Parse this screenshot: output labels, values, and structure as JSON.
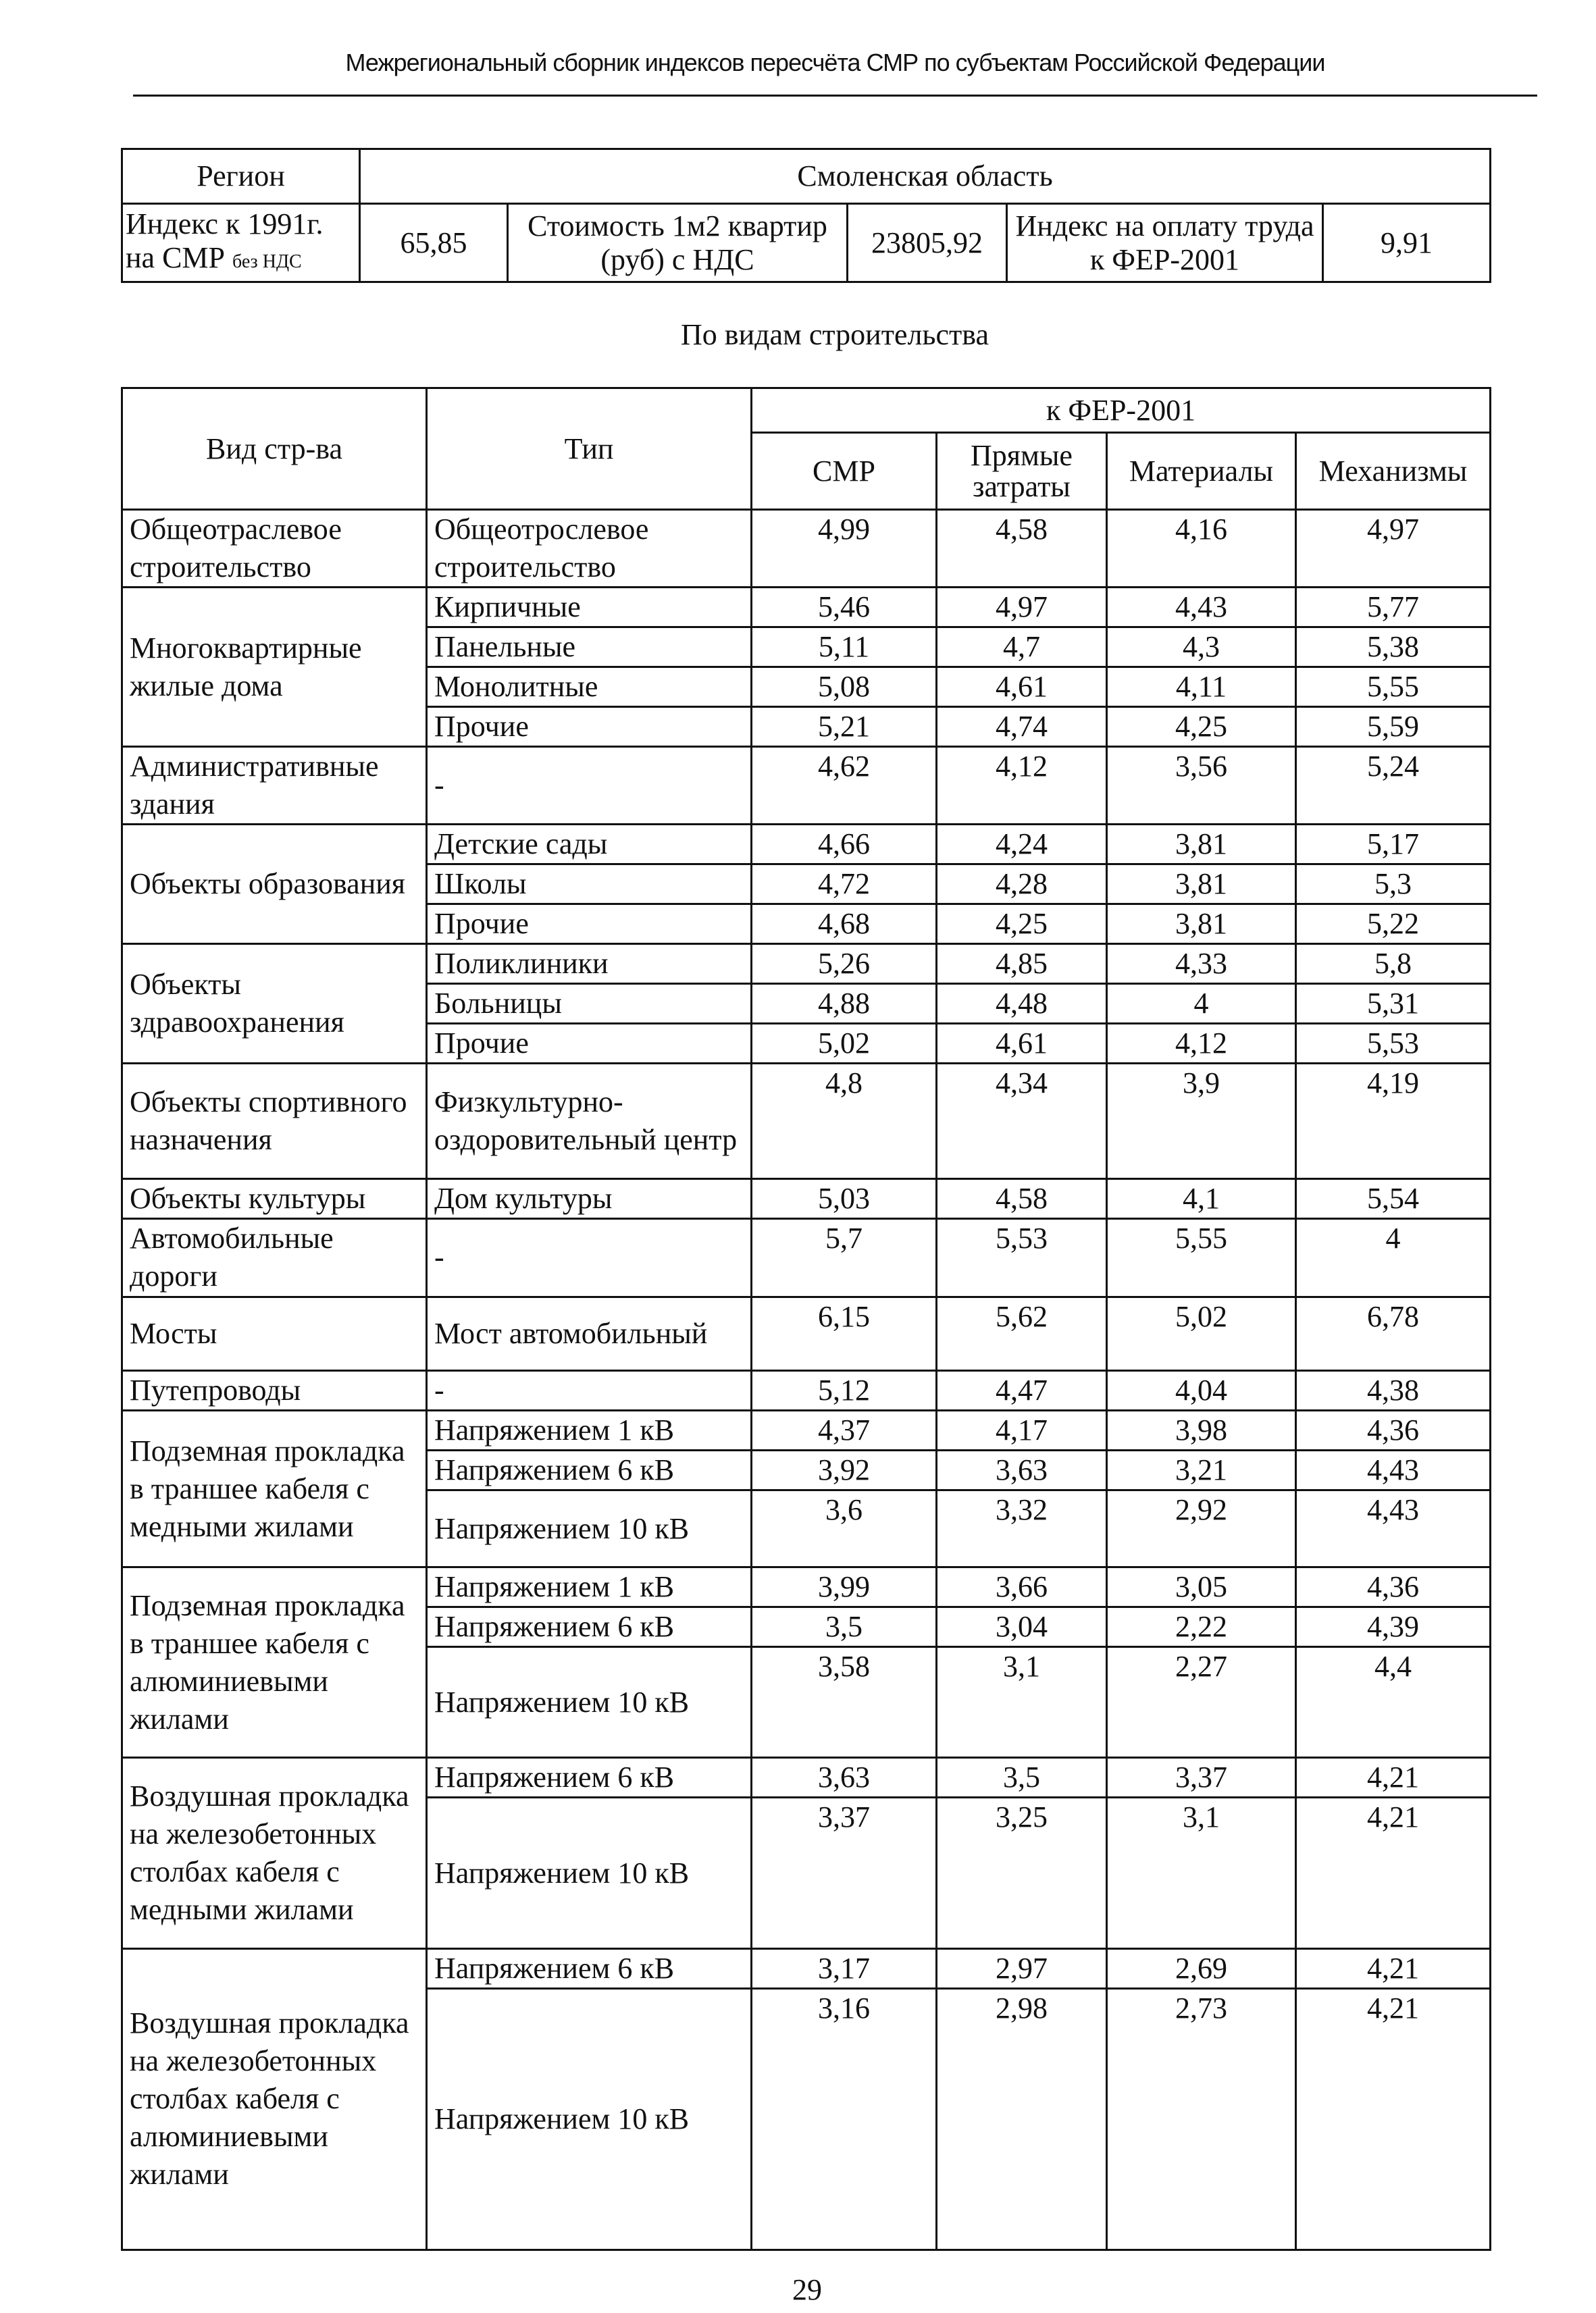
{
  "header": {
    "title": "Межрегиональный сборник индексов пересчёта СМР по субъектам Российской Федерации"
  },
  "region_table": {
    "region_label": "Регион",
    "region": "Смоленская область",
    "index_label_line1": "Индекс к 1991г.",
    "index_label_line2": "на СМР",
    "index_label_note": "без НДС",
    "index_value": "65,85",
    "cost_label": "Стоимость 1м2 квартир (руб) с НДС",
    "cost_value": "23805,92",
    "labor_label": "Индекс на оплату труда к ФЕР-2001",
    "labor_value": "9,91"
  },
  "subtitle": "По видам строительства",
  "table": {
    "header": {
      "kind": "Вид стр-ва",
      "type": "Тип",
      "group": "к ФЕР-2001",
      "columns": [
        "СМР",
        "Прямые затраты",
        "Материалы",
        "Механизмы"
      ]
    },
    "groups": [
      {
        "name": "Общеотраслевое строительство",
        "rows": [
          {
            "type": "Общеотрослевое строительство",
            "values": [
              "4,99",
              "4,58",
              "4,16",
              "4,97"
            ]
          }
        ]
      },
      {
        "name": "Многоквартирные жилые дома",
        "rows": [
          {
            "type": "Кирпичные",
            "values": [
              "5,46",
              "4,97",
              "4,43",
              "5,77"
            ]
          },
          {
            "type": "Панельные",
            "values": [
              "5,11",
              "4,7",
              "4,3",
              "5,38"
            ]
          },
          {
            "type": "Монолитные",
            "values": [
              "5,08",
              "4,61",
              "4,11",
              "5,55"
            ]
          },
          {
            "type": "Прочие",
            "values": [
              "5,21",
              "4,74",
              "4,25",
              "5,59"
            ]
          }
        ]
      },
      {
        "name": "Административные здания",
        "rows": [
          {
            "type": "-",
            "values": [
              "4,62",
              "4,12",
              "3,56",
              "5,24"
            ]
          }
        ]
      },
      {
        "name": "Объекты образования",
        "rows": [
          {
            "type": "Детские сады",
            "values": [
              "4,66",
              "4,24",
              "3,81",
              "5,17"
            ]
          },
          {
            "type": "Школы",
            "values": [
              "4,72",
              "4,28",
              "3,81",
              "5,3"
            ]
          },
          {
            "type": "Прочие",
            "values": [
              "4,68",
              "4,25",
              "3,81",
              "5,22"
            ]
          }
        ]
      },
      {
        "name": "Объекты здравоохранения",
        "rows": [
          {
            "type": "Поликлиники",
            "values": [
              "5,26",
              "4,85",
              "4,33",
              "5,8"
            ]
          },
          {
            "type": "Больницы",
            "values": [
              "4,88",
              "4,48",
              "4",
              "5,31"
            ]
          },
          {
            "type": "Прочие",
            "values": [
              "5,02",
              "4,61",
              "4,12",
              "5,53"
            ]
          }
        ]
      },
      {
        "name": "Объекты спортивного назначения",
        "rows": [
          {
            "type": "Физкультурно-оздоровительный центр",
            "values": [
              "4,8",
              "4,34",
              "3,9",
              "4,19"
            ]
          }
        ]
      },
      {
        "name": "Объекты культуры",
        "rows": [
          {
            "type": "Дом культуры",
            "values": [
              "5,03",
              "4,58",
              "4,1",
              "5,54"
            ]
          }
        ]
      },
      {
        "name": "Автомобильные дороги",
        "rows": [
          {
            "type": "-",
            "values": [
              "5,7",
              "5,53",
              "5,55",
              "4"
            ]
          }
        ]
      },
      {
        "name": "Мосты",
        "rows": [
          {
            "type": "Мост автомобильный",
            "values": [
              "6,15",
              "5,62",
              "5,02",
              "6,78"
            ]
          }
        ]
      },
      {
        "name": "Путепроводы",
        "rows": [
          {
            "type": "-",
            "values": [
              "5,12",
              "4,47",
              "4,04",
              "4,38"
            ]
          }
        ]
      },
      {
        "name": "Подземная прокладка в траншее кабеля с медными жилами",
        "rows": [
          {
            "type": "Напряжением 1 кВ",
            "values": [
              "4,37",
              "4,17",
              "3,98",
              "4,36"
            ]
          },
          {
            "type": "Напряжением 6 кВ",
            "values": [
              "3,92",
              "3,63",
              "3,21",
              "4,43"
            ]
          },
          {
            "type": "Напряжением 10 кВ",
            "values": [
              "3,6",
              "3,32",
              "2,92",
              "4,43"
            ]
          }
        ]
      },
      {
        "name": "Подземная прокладка в траншее кабеля с алюминиевыми жилами",
        "rows": [
          {
            "type": "Напряжением 1 кВ",
            "values": [
              "3,99",
              "3,66",
              "3,05",
              "4,36"
            ]
          },
          {
            "type": "Напряжением 6 кВ",
            "values": [
              "3,5",
              "3,04",
              "2,22",
              "4,39"
            ]
          },
          {
            "type": "Напряжением 10 кВ",
            "values": [
              "3,58",
              "3,1",
              "2,27",
              "4,4"
            ]
          }
        ]
      },
      {
        "name": "Воздушная прокладка на железобетонных столбах кабеля с медными жилами",
        "rows": [
          {
            "type": "Напряжением 6 кВ",
            "values": [
              "3,63",
              "3,5",
              "3,37",
              "4,21"
            ]
          },
          {
            "type": "Напряжением 10 кВ",
            "values": [
              "3,37",
              "3,25",
              "3,1",
              "4,21"
            ]
          }
        ]
      },
      {
        "name": "Воздушная прокладка на железобетонных столбах кабеля с алюминиевыми жилами",
        "rows": [
          {
            "type": "Напряжением 6 кВ",
            "values": [
              "3,17",
              "2,97",
              "2,69",
              "4,21"
            ]
          },
          {
            "type": "Напряжением 10 кВ",
            "values": [
              "3,16",
              "2,98",
              "2,73",
              "4,21"
            ]
          }
        ]
      }
    ]
  },
  "page_number": "29"
}
